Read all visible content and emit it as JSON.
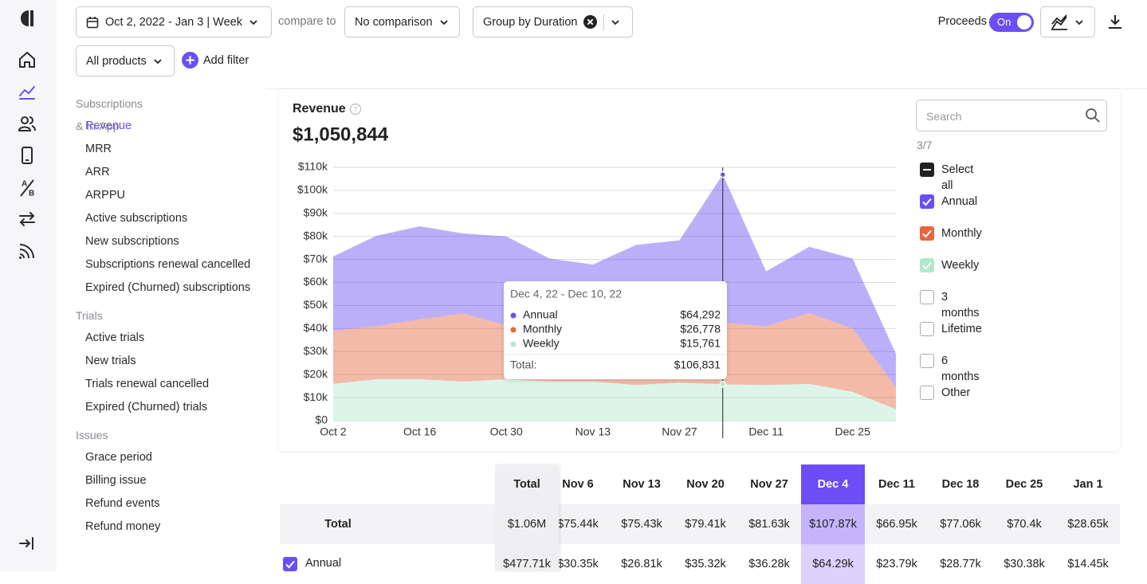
{
  "toolbar": {
    "date_range": "Oct 2, 2022 - Jan 3 | Week",
    "compare_label": "compare to",
    "comparison": "No comparison",
    "group_by": "Group by Duration",
    "proceeds_label": "Proceeds",
    "proceeds_toggle": "On",
    "product_filter": "All products",
    "add_filter": "Add filter"
  },
  "sidebar": {
    "sections": [
      {
        "title": "Subscriptions & In-App",
        "items": [
          "Revenue",
          "MRR",
          "ARR",
          "ARPPU",
          "Active subscriptions",
          "New subscriptions",
          "Subscriptions renewal cancelled",
          "Expired (Churned) subscriptions"
        ]
      },
      {
        "title": "Trials",
        "items": [
          "Active trials",
          "New trials",
          "Trials renewal cancelled",
          "Expired (Churned) trials"
        ]
      },
      {
        "title": "Issues",
        "items": [
          "Grace period",
          "Billing issue",
          "Refund events",
          "Refund money"
        ]
      }
    ],
    "active_item": "Revenue"
  },
  "chart_data": {
    "type": "area",
    "stacked": true,
    "title": "Revenue",
    "total": "$1,050,844",
    "categories": [
      "Oct 2",
      null,
      "Oct 16",
      null,
      "Oct 30",
      null,
      "Nov 13",
      null,
      "Nov 27",
      null,
      "Dec 11",
      null,
      "Dec 25",
      null
    ],
    "series": [
      {
        "name": "Annual",
        "color": "#6b4ef5",
        "values": [
          32.3,
          39.3,
          40.4,
          34.8,
          38.5,
          30.4,
          26.8,
          35.3,
          36.3,
          64.292,
          23.8,
          28.8,
          30.4,
          14.5
        ]
      },
      {
        "name": "Monthly",
        "color": "#e5673f",
        "values": [
          23,
          23,
          26,
          29.5,
          23.5,
          23,
          24,
          25.5,
          25.5,
          26.778,
          25.5,
          30.7,
          27.5,
          9.5
        ]
      },
      {
        "name": "Weekly",
        "color": "#b2e8cc",
        "values": [
          16,
          18,
          18,
          17,
          18,
          17,
          17,
          15.5,
          16.5,
          15.761,
          15.5,
          16,
          12.5,
          5
        ]
      }
    ],
    "ylim": [
      0,
      110
    ],
    "yticks": [
      {
        "value": 0,
        "label": "$0"
      },
      {
        "value": 10,
        "label": "$10k"
      },
      {
        "value": 20,
        "label": "$20k"
      },
      {
        "value": 30,
        "label": "$30k"
      },
      {
        "value": 40,
        "label": "$40k"
      },
      {
        "value": 50,
        "label": "$50k"
      },
      {
        "value": 60,
        "label": "$60k"
      },
      {
        "value": 70,
        "label": "$70k"
      },
      {
        "value": 80,
        "label": "$80k"
      },
      {
        "value": 90,
        "label": "$90k"
      },
      {
        "value": 100,
        "label": "$100k"
      },
      {
        "value": 110,
        "label": "$110k"
      }
    ],
    "grid": true,
    "highlight": 9,
    "tooltip": {
      "title": "Dec 4, 22 - Dec 10, 22",
      "values": [
        "$64,292",
        "$26,778",
        "$15,761"
      ],
      "total_label": "Total:",
      "total": "$106,831"
    }
  },
  "filter_panel": {
    "search_placeholder": "Search",
    "count": "3/7",
    "select_all": "Select all",
    "other_options": [
      "3 months",
      "Lifetime",
      "6 months",
      "Other"
    ]
  },
  "table": {
    "header": [
      "Total",
      "Nov 6",
      "Nov 13",
      "Nov 20",
      "Nov 27",
      "Dec 4",
      "Dec 11",
      "Dec 18",
      "Dec 25",
      "Jan 1"
    ],
    "highlight_column": 5,
    "rows": [
      {
        "label": "Total",
        "cells": [
          "$1.06M",
          "$75.44k",
          "$75.43k",
          "$79.41k",
          "$81.63k",
          "$107.87k",
          "$66.95k",
          "$77.06k",
          "$70.4k",
          "$28.65k"
        ]
      },
      {
        "label": "Annual",
        "cells": [
          "$477.71k",
          "$30.35k",
          "$26.81k",
          "$35.32k",
          "$36.28k",
          "$64.29k",
          "$23.79k",
          "$28.77k",
          "$30.38k",
          "$14.45k"
        ]
      }
    ]
  }
}
